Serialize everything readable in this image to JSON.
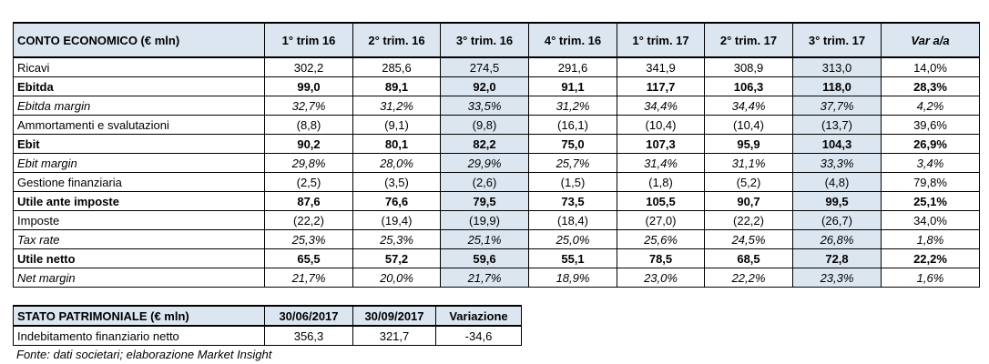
{
  "income_table": {
    "header": [
      "CONTO ECONOMICO (€ mln)",
      "1° trim 16",
      "2° trim. 16",
      "3° trim. 16",
      "4° trim. 16",
      "1° trim. 17",
      "2° trim. 17",
      "3° trim. 17",
      "Var a/a"
    ],
    "rows": [
      [
        "Ricavi",
        "302,2",
        "285,6",
        "274,5",
        "291,6",
        "341,9",
        "308,9",
        "313,0",
        "14,0%"
      ],
      [
        "Ebitda",
        "99,0",
        "89,1",
        "92,0",
        "91,1",
        "117,7",
        "106,3",
        "118,0",
        "28,3%"
      ],
      [
        "Ebitda margin",
        "32,7%",
        "31,2%",
        "33,5%",
        "31,2%",
        "34,4%",
        "34,4%",
        "37,7%",
        "4,2%"
      ],
      [
        "Ammortamenti e svalutazioni",
        "(8,8)",
        "(9,1)",
        "(9,8)",
        "(16,1)",
        "(10,4)",
        "(10,4)",
        "(13,7)",
        "39,6%"
      ],
      [
        "Ebit",
        "90,2",
        "80,1",
        "82,2",
        "75,0",
        "107,3",
        "95,9",
        "104,3",
        "26,9%"
      ],
      [
        "Ebit margin",
        "29,8%",
        "28,0%",
        "29,9%",
        "25,7%",
        "31,4%",
        "31,1%",
        "33,3%",
        "3,4%"
      ],
      [
        "Gestione finanziaria",
        "(2,5)",
        "(3,5)",
        "(2,6)",
        "(1,5)",
        "(1,8)",
        "(5,2)",
        "(4,8)",
        "79,8%"
      ],
      [
        "Utile ante imposte",
        "87,6",
        "76,6",
        "79,5",
        "73,5",
        "105,5",
        "90,7",
        "99,5",
        "25,1%"
      ],
      [
        "Imposte",
        "(22,2)",
        "(19,4)",
        "(19,9)",
        "(18,4)",
        "(27,0)",
        "(22,2)",
        "(26,7)",
        "34,0%"
      ],
      [
        "Tax rate",
        "25,3%",
        "25,3%",
        "25,1%",
        "25,0%",
        "25,6%",
        "24,5%",
        "26,8%",
        "1,8%"
      ],
      [
        "Utile netto",
        "65,5",
        "57,2",
        "59,6",
        "55,1",
        "78,5",
        "68,5",
        "72,8",
        "22,2%"
      ],
      [
        "Net margin",
        "21,7%",
        "20,0%",
        "21,7%",
        "18,9%",
        "23,0%",
        "22,2%",
        "23,3%",
        "1,6%"
      ]
    ]
  },
  "balance_table": {
    "header": [
      "STATO PATRIMONIALE (€ mln)",
      "30/06/2017",
      "30/09/2017",
      "Variazione"
    ],
    "rows": [
      [
        "Indebitamento finanziario netto",
        "356,3",
        "321,7",
        "-34,6"
      ]
    ]
  },
  "footnote": "Fonte: dati societari; elaborazione Market Insight"
}
